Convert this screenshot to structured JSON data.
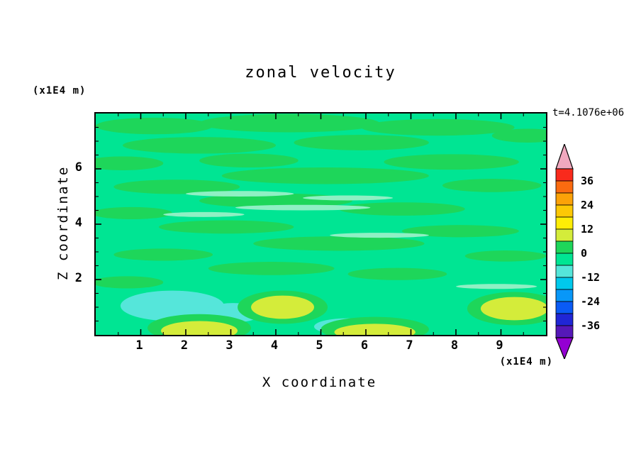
{
  "title": "zonal velocity",
  "chart_data": {
    "type": "filled-contour",
    "title": "zonal velocity",
    "xlabel": "X coordinate",
    "ylabel": "Z coordinate",
    "x_units_label": "(x1E4 m)",
    "y_units_label": "(x1E4 m)",
    "time_annotation": "t=4.1076e+06",
    "x_range": [
      0,
      10
    ],
    "y_range": [
      0,
      8
    ],
    "x_ticks": [
      1,
      2,
      3,
      4,
      5,
      6,
      7,
      8,
      9
    ],
    "y_ticks": [
      2,
      4,
      6
    ],
    "minor_tick_step": 0.5,
    "grid": false,
    "contour_interval": 6,
    "levels": [
      -42,
      -36,
      -30,
      -24,
      -18,
      -12,
      -6,
      0,
      6,
      12,
      18,
      24,
      30,
      36,
      42
    ],
    "colorbar": {
      "position": "right",
      "labels": [
        36,
        24,
        12,
        0,
        -12,
        -24,
        -36
      ],
      "over_color": "#F0A8BE",
      "under_color": "#9400D3",
      "segment_colors_top_to_bottom": [
        "#F92A1C",
        "#FB6B10",
        "#FCA208",
        "#FDC805",
        "#FEED06",
        "#D4EC3A",
        "#1ED65A",
        "#00E593",
        "#55E6DA",
        "#00C9EC",
        "#0897F8",
        "#0A5BF5",
        "#2026D6",
        "#5518B8"
      ]
    },
    "field": {
      "description": "zonal velocity field, mostly near zero (green), elongated positive streaks aloft, weak negative (cyan) pools and positive (yellow-green) patches near the bottom boundary",
      "background_level": "-6..0",
      "background_color": "#00E593",
      "features": [
        {
          "lv": "0..6",
          "c": "#1ED65A",
          "x": 1.3,
          "z": 7.55,
          "rx": 1.3,
          "rz": 0.3
        },
        {
          "lv": "0..6",
          "c": "#1ED65A",
          "x": 4.3,
          "z": 7.65,
          "rx": 2.0,
          "rz": 0.33
        },
        {
          "lv": "0..6",
          "c": "#1ED65A",
          "x": 7.6,
          "z": 7.5,
          "rx": 1.7,
          "rz": 0.3
        },
        {
          "lv": "0..6",
          "c": "#1ED65A",
          "x": 9.6,
          "z": 7.2,
          "rx": 0.8,
          "rz": 0.25
        },
        {
          "lv": "0..6",
          "c": "#1ED65A",
          "x": 2.3,
          "z": 6.85,
          "rx": 1.7,
          "rz": 0.3
        },
        {
          "lv": "0..6",
          "c": "#1ED65A",
          "x": 5.9,
          "z": 6.95,
          "rx": 1.5,
          "rz": 0.28
        },
        {
          "lv": "0..6",
          "c": "#1ED65A",
          "x": 0.6,
          "z": 6.2,
          "rx": 0.9,
          "rz": 0.25
        },
        {
          "lv": "0..6",
          "c": "#1ED65A",
          "x": 3.4,
          "z": 6.3,
          "rx": 1.1,
          "rz": 0.25
        },
        {
          "lv": "0..6",
          "c": "#1ED65A",
          "x": 7.9,
          "z": 6.25,
          "rx": 1.5,
          "rz": 0.28
        },
        {
          "lv": "0..6",
          "c": "#1ED65A",
          "x": 5.1,
          "z": 5.75,
          "rx": 2.3,
          "rz": 0.3
        },
        {
          "lv": "0..6",
          "c": "#1ED65A",
          "x": 1.8,
          "z": 5.35,
          "rx": 1.4,
          "rz": 0.26
        },
        {
          "lv": "0..6",
          "c": "#1ED65A",
          "x": 8.8,
          "z": 5.4,
          "rx": 1.1,
          "rz": 0.24
        },
        {
          "lv": "0..6",
          "c": "#1ED65A",
          "x": 4.0,
          "z": 4.85,
          "rx": 1.7,
          "rz": 0.26
        },
        {
          "lv": "0..6",
          "c": "#1ED65A",
          "x": 0.8,
          "z": 4.4,
          "rx": 0.9,
          "rz": 0.22
        },
        {
          "lv": "0..6",
          "c": "#1ED65A",
          "x": 6.8,
          "z": 4.55,
          "rx": 1.4,
          "rz": 0.24
        },
        {
          "lv": "0..6",
          "c": "#1ED65A",
          "x": 2.9,
          "z": 3.9,
          "rx": 1.5,
          "rz": 0.24
        },
        {
          "lv": "0..6",
          "c": "#1ED65A",
          "x": 8.1,
          "z": 3.75,
          "rx": 1.3,
          "rz": 0.22
        },
        {
          "lv": "0..6",
          "c": "#1ED65A",
          "x": 5.4,
          "z": 3.3,
          "rx": 1.9,
          "rz": 0.26
        },
        {
          "lv": "0..6",
          "c": "#1ED65A",
          "x": 1.5,
          "z": 2.9,
          "rx": 1.1,
          "rz": 0.22
        },
        {
          "lv": "0..6",
          "c": "#1ED65A",
          "x": 9.1,
          "z": 2.85,
          "rx": 0.9,
          "rz": 0.2
        },
        {
          "lv": "0..6",
          "c": "#1ED65A",
          "x": 3.9,
          "z": 2.4,
          "rx": 1.4,
          "rz": 0.24
        },
        {
          "lv": "0..6",
          "c": "#1ED65A",
          "x": 6.7,
          "z": 2.2,
          "rx": 1.1,
          "rz": 0.22
        },
        {
          "lv": "0..6",
          "c": "#1ED65A",
          "x": 0.7,
          "z": 1.9,
          "rx": 0.8,
          "rz": 0.22
        },
        {
          "lv": "-6..0",
          "c": "#8FF0C4",
          "x": 3.2,
          "z": 5.1,
          "rx": 1.2,
          "rz": 0.1
        },
        {
          "lv": "-6..0",
          "c": "#8FF0C4",
          "x": 4.6,
          "z": 4.6,
          "rx": 1.5,
          "rz": 0.1
        },
        {
          "lv": "-6..0",
          "c": "#8FF0C4",
          "x": 5.6,
          "z": 4.95,
          "rx": 1.0,
          "rz": 0.09
        },
        {
          "lv": "-6..0",
          "c": "#8FF0C4",
          "x": 2.4,
          "z": 4.35,
          "rx": 0.9,
          "rz": 0.09
        },
        {
          "lv": "-6..0",
          "c": "#8FF0C4",
          "x": 6.3,
          "z": 3.6,
          "rx": 1.1,
          "rz": 0.09
        },
        {
          "lv": "-6..0",
          "c": "#8FF0C4",
          "x": 8.9,
          "z": 1.75,
          "rx": 0.9,
          "rz": 0.09
        },
        {
          "lv": "-12..-6",
          "c": "#55E6DA",
          "x": 1.7,
          "z": 1.05,
          "rx": 1.15,
          "rz": 0.55
        },
        {
          "lv": "-12..-6",
          "c": "#55E6DA",
          "x": 3.05,
          "z": 0.8,
          "rx": 0.65,
          "rz": 0.35
        },
        {
          "lv": "-12..-6",
          "c": "#55E6DA",
          "x": 5.6,
          "z": 0.3,
          "rx": 0.75,
          "rz": 0.3
        },
        {
          "lv": "0..6",
          "c": "#1ED65A",
          "x": 2.3,
          "z": 0.25,
          "rx": 1.15,
          "rz": 0.5
        },
        {
          "lv": "6..12",
          "c": "#D4EC3A",
          "x": 2.3,
          "z": 0.15,
          "rx": 0.85,
          "rz": 0.35
        },
        {
          "lv": "0..6",
          "c": "#1ED65A",
          "x": 4.15,
          "z": 1.0,
          "rx": 1.0,
          "rz": 0.6
        },
        {
          "lv": "6..12",
          "c": "#D4EC3A",
          "x": 4.15,
          "z": 1.0,
          "rx": 0.7,
          "rz": 0.42
        },
        {
          "lv": "0..6",
          "c": "#1ED65A",
          "x": 6.2,
          "z": 0.2,
          "rx": 1.2,
          "rz": 0.45
        },
        {
          "lv": "6..12",
          "c": "#D4EC3A",
          "x": 6.2,
          "z": 0.1,
          "rx": 0.9,
          "rz": 0.3
        },
        {
          "lv": "0..6",
          "c": "#1ED65A",
          "x": 9.3,
          "z": 0.95,
          "rx": 1.05,
          "rz": 0.6
        },
        {
          "lv": "6..12",
          "c": "#D4EC3A",
          "x": 9.3,
          "z": 0.95,
          "rx": 0.75,
          "rz": 0.42
        }
      ]
    }
  }
}
